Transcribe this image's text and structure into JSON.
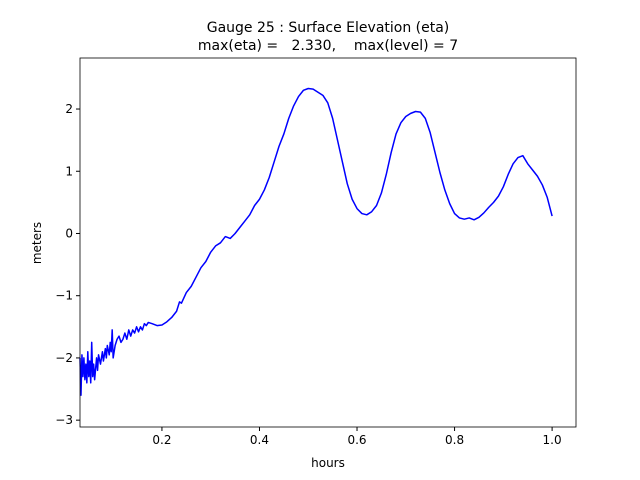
{
  "chart_data": {
    "type": "line",
    "title": "Gauge 25 : Surface Elevation (eta)",
    "subtitle": "max(eta) =   2.330,    max(level) = 7",
    "x_label": "hours",
    "y_label": "meters",
    "xlim": [
      0.032,
      1.049
    ],
    "ylim": [
      -3.11,
      2.82
    ],
    "xticks": [
      0.2,
      0.4,
      0.6,
      0.8,
      {
        "value": 1,
        "label": "1.0"
      }
    ],
    "yticks": [
      {
        "value": -3,
        "label": "−3"
      },
      {
        "value": -2,
        "label": "−2"
      },
      {
        "value": -1,
        "label": "−1"
      },
      0,
      1,
      2
    ],
    "grid": false,
    "x": [
      0.032,
      0.034,
      0.036,
      0.038,
      0.04,
      0.042,
      0.044,
      0.046,
      0.048,
      0.05,
      0.052,
      0.054,
      0.056,
      0.058,
      0.06,
      0.062,
      0.066,
      0.068,
      0.07,
      0.074,
      0.078,
      0.08,
      0.084,
      0.086,
      0.088,
      0.092,
      0.094,
      0.096,
      0.098,
      0.1,
      0.104,
      0.108,
      0.112,
      0.116,
      0.12,
      0.124,
      0.128,
      0.132,
      0.136,
      0.14,
      0.144,
      0.148,
      0.152,
      0.156,
      0.16,
      0.164,
      0.168,
      0.172,
      0.18,
      0.19,
      0.2,
      0.21,
      0.22,
      0.23,
      0.236,
      0.24,
      0.25,
      0.26,
      0.27,
      0.28,
      0.29,
      0.3,
      0.31,
      0.32,
      0.33,
      0.34,
      0.35,
      0.36,
      0.37,
      0.38,
      0.39,
      0.4,
      0.41,
      0.42,
      0.43,
      0.44,
      0.45,
      0.46,
      0.47,
      0.48,
      0.49,
      0.5,
      0.51,
      0.52,
      0.53,
      0.54,
      0.55,
      0.56,
      0.57,
      0.58,
      0.59,
      0.6,
      0.61,
      0.62,
      0.63,
      0.64,
      0.65,
      0.66,
      0.67,
      0.68,
      0.69,
      0.7,
      0.71,
      0.72,
      0.73,
      0.74,
      0.75,
      0.76,
      0.77,
      0.78,
      0.79,
      0.8,
      0.81,
      0.82,
      0.83,
      0.84,
      0.85,
      0.86,
      0.87,
      0.88,
      0.89,
      0.9,
      0.91,
      0.92,
      0.93,
      0.94,
      0.95,
      0.96,
      0.97,
      0.98,
      0.99,
      1.0
    ],
    "series": [
      {
        "name": "eta",
        "color": "#0000ff",
        "values": [
          -2.0,
          -2.6,
          -1.95,
          -2.3,
          -2.0,
          -2.35,
          -2.1,
          -2.4,
          -1.9,
          -2.3,
          -2.05,
          -2.4,
          -1.75,
          -2.3,
          -2.1,
          -2.35,
          -2.0,
          -2.2,
          -1.95,
          -2.1,
          -1.9,
          -2.05,
          -1.85,
          -2.0,
          -1.8,
          -1.95,
          -1.75,
          -1.9,
          -1.55,
          -2.0,
          -1.8,
          -1.7,
          -1.65,
          -1.75,
          -1.7,
          -1.6,
          -1.7,
          -1.55,
          -1.65,
          -1.55,
          -1.6,
          -1.5,
          -1.58,
          -1.5,
          -1.55,
          -1.45,
          -1.48,
          -1.43,
          -1.45,
          -1.48,
          -1.47,
          -1.42,
          -1.35,
          -1.25,
          -1.1,
          -1.12,
          -0.95,
          -0.85,
          -0.7,
          -0.55,
          -0.45,
          -0.3,
          -0.2,
          -0.15,
          -0.05,
          -0.08,
          0.0,
          0.1,
          0.2,
          0.3,
          0.45,
          0.55,
          0.7,
          0.9,
          1.15,
          1.4,
          1.6,
          1.85,
          2.05,
          2.2,
          2.3,
          2.33,
          2.32,
          2.27,
          2.22,
          2.1,
          1.85,
          1.5,
          1.15,
          0.8,
          0.55,
          0.4,
          0.32,
          0.3,
          0.35,
          0.45,
          0.65,
          0.95,
          1.3,
          1.6,
          1.78,
          1.88,
          1.93,
          1.96,
          1.95,
          1.85,
          1.62,
          1.3,
          0.98,
          0.7,
          0.48,
          0.32,
          0.25,
          0.23,
          0.25,
          0.22,
          0.26,
          0.33,
          0.42,
          0.5,
          0.6,
          0.75,
          0.95,
          1.12,
          1.22,
          1.25,
          1.12,
          1.02,
          0.92,
          0.78,
          0.58,
          0.28
        ]
      }
    ]
  }
}
